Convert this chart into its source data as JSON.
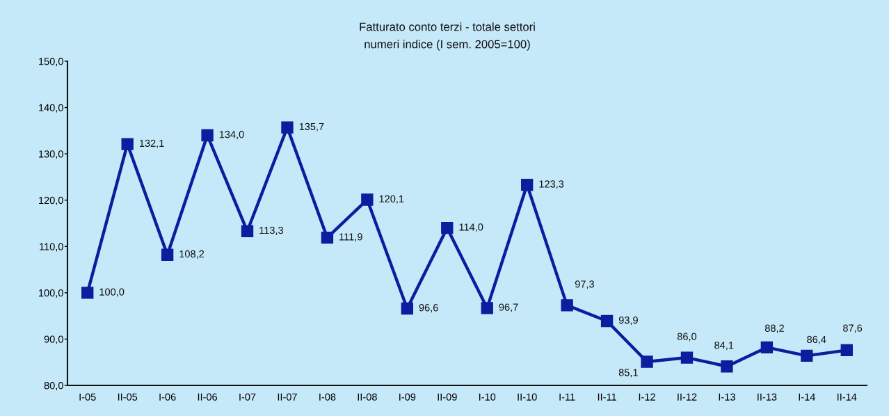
{
  "chart_data": {
    "type": "line",
    "title": "Fatturato conto terzi - totale settori",
    "subtitle": "numeri indice (I sem. 2005=100)",
    "categories": [
      "I-05",
      "II-05",
      "I-06",
      "II-06",
      "I-07",
      "II-07",
      "I-08",
      "II-08",
      "I-09",
      "II-09",
      "I-10",
      "II-10",
      "I-11",
      "II-11",
      "I-12",
      "II-12",
      "I-13",
      "II-13",
      "I-14",
      "II-14"
    ],
    "series": [
      {
        "color": "#0a1e9e",
        "values": [
          100.0,
          132.1,
          108.2,
          134.0,
          113.3,
          135.7,
          111.9,
          120.1,
          96.6,
          114.0,
          96.7,
          123.3,
          97.3,
          93.9,
          85.1,
          86.0,
          84.1,
          88.2,
          86.4,
          87.6
        ],
        "value_labels": [
          "100,0",
          "132,1",
          "108,2",
          "134,0",
          "113,3",
          "135,7",
          "111,9",
          "120,1",
          "96,6",
          "114,0",
          "96,7",
          "123,3",
          "97,3",
          "93,9",
          "85,1",
          "86,0",
          "84,1",
          "88,2",
          "86,4",
          "87,6"
        ]
      }
    ],
    "ylim": [
      80,
      150
    ],
    "yticks": [
      {
        "value": 80,
        "label": "80,0"
      },
      {
        "value": 90,
        "label": "90,0"
      },
      {
        "value": 100,
        "label": "100,0"
      },
      {
        "value": 110,
        "label": "110,0"
      },
      {
        "value": 120,
        "label": "120,0"
      },
      {
        "value": 130,
        "label": "130,0"
      },
      {
        "value": 140,
        "label": "140,0"
      },
      {
        "value": 150,
        "label": "150,0"
      }
    ],
    "grid": false,
    "marker": "square",
    "line_style": "solid"
  }
}
